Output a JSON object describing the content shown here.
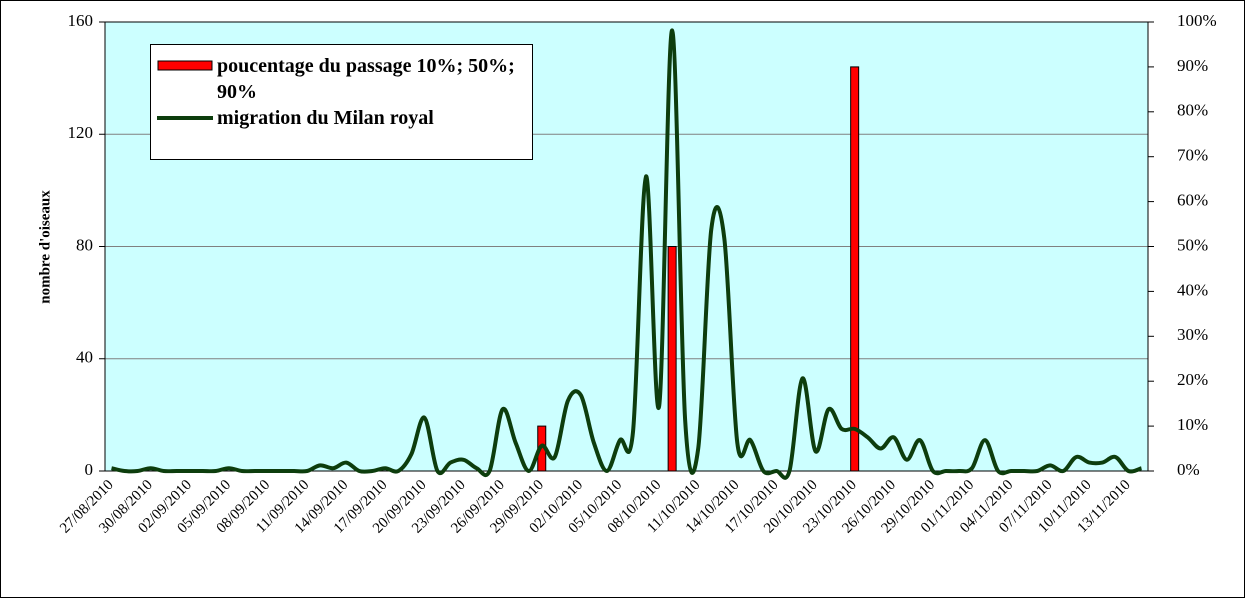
{
  "chart_data": {
    "type": "bar-line",
    "ylabel": "nombre d'oiseaux",
    "categories": [
      "27/08/2010",
      null,
      null,
      "30/08/2010",
      null,
      null,
      "02/09/2010",
      null,
      null,
      "05/09/2010",
      null,
      null,
      "08/09/2010",
      null,
      null,
      "11/09/2010",
      null,
      null,
      "14/09/2010",
      null,
      null,
      "17/09/2010",
      null,
      null,
      "20/09/2010",
      null,
      null,
      "23/09/2010",
      null,
      null,
      "26/09/2010",
      null,
      null,
      "29/09/2010",
      null,
      null,
      "02/10/2010",
      null,
      null,
      "05/10/2010",
      null,
      null,
      "08/10/2010",
      null,
      null,
      "11/10/2010",
      null,
      null,
      "14/10/2010",
      null,
      null,
      "17/10/2010",
      null,
      null,
      "20/10/2010",
      null,
      null,
      "23/10/2010",
      null,
      null,
      "26/10/2010",
      null,
      null,
      "29/10/2010",
      null,
      null,
      "01/11/2010",
      null,
      null,
      "04/11/2010",
      null,
      null,
      "07/11/2010",
      null,
      null,
      "10/11/2010",
      null,
      null,
      "13/11/2010",
      null
    ],
    "series": [
      {
        "name": "poucentage du passage 10%; 50%; 90%",
        "type": "bar",
        "axis": "y2",
        "color": "#ff0000",
        "values": [
          null,
          null,
          null,
          null,
          null,
          null,
          null,
          null,
          null,
          null,
          null,
          null,
          null,
          null,
          null,
          null,
          null,
          null,
          null,
          null,
          null,
          null,
          null,
          null,
          null,
          null,
          null,
          null,
          null,
          null,
          null,
          null,
          null,
          10,
          null,
          null,
          null,
          null,
          null,
          null,
          null,
          null,
          null,
          50,
          null,
          null,
          null,
          null,
          null,
          null,
          null,
          null,
          null,
          null,
          null,
          null,
          null,
          90,
          null,
          null,
          null,
          null,
          null,
          null,
          null,
          null,
          null,
          null,
          null,
          null,
          null,
          null,
          null,
          null,
          null,
          null,
          null,
          null,
          null,
          null
        ]
      },
      {
        "name": "migration du Milan royal",
        "type": "line",
        "color": "#0d3d0d",
        "values": [
          1,
          0,
          0,
          1,
          0,
          0,
          0,
          0,
          0,
          1,
          0,
          0,
          0,
          0,
          0,
          0,
          2,
          1,
          3,
          0,
          0,
          1,
          0,
          6,
          19,
          0,
          3,
          4,
          1,
          0,
          22,
          10,
          0,
          9,
          5,
          25,
          27,
          10,
          0,
          11,
          14,
          105,
          23,
          157,
          18,
          8,
          86,
          83,
          10,
          11,
          0,
          0,
          0,
          33,
          7,
          22,
          15,
          15,
          12,
          8,
          12,
          4,
          11,
          0,
          0,
          0,
          1,
          11,
          0,
          0,
          0,
          0,
          2,
          0,
          5,
          3,
          3,
          5,
          0,
          1
        ]
      }
    ],
    "ylim": [
      0,
      160
    ],
    "yticks": [
      0,
      40,
      80,
      120,
      160
    ],
    "y2lim": [
      0,
      100
    ],
    "y2ticks": [
      {
        "value": 0,
        "label": "0%"
      },
      {
        "value": 10,
        "label": "10%"
      },
      {
        "value": 20,
        "label": "20%"
      },
      {
        "value": 30,
        "label": "30%"
      },
      {
        "value": 40,
        "label": "40%"
      },
      {
        "value": 50,
        "label": "50%"
      },
      {
        "value": 60,
        "label": "60%"
      },
      {
        "value": 70,
        "label": "70%"
      },
      {
        "value": 80,
        "label": "80%"
      },
      {
        "value": 90,
        "label": "90%"
      },
      {
        "value": 100,
        "label": "100%"
      }
    ],
    "grid": true,
    "background": "#ccffff",
    "legend": "top-left"
  }
}
